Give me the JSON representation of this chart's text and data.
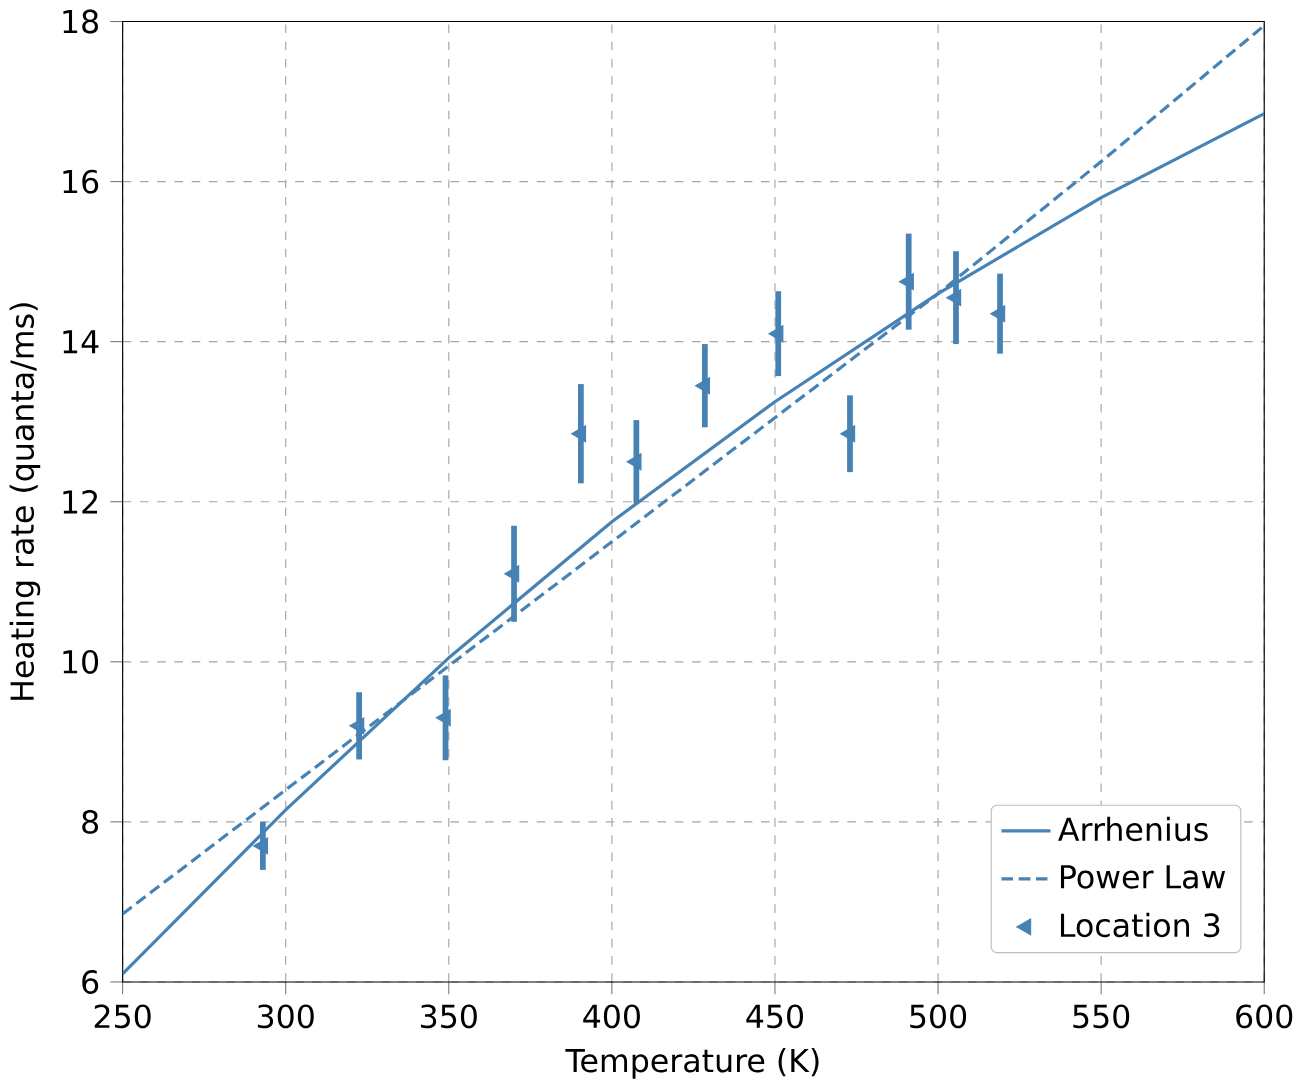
{
  "chart_data": {
    "type": "line",
    "xlabel": "Temperature (K)",
    "ylabel": "Heating rate (quanta/ms)",
    "xlim": [
      250,
      600
    ],
    "ylim": [
      6,
      18
    ],
    "xticks": [
      250,
      300,
      350,
      400,
      450,
      500,
      550,
      600
    ],
    "yticks": [
      6,
      8,
      10,
      12,
      14,
      16,
      18
    ],
    "grid": true,
    "legend": "bottom right",
    "series": [
      {
        "name": "Arrhenius",
        "line_style": "solid",
        "color": "#4682b4",
        "x": [
          250,
          300,
          350,
          400,
          450,
          500,
          550,
          600
        ],
        "values": [
          6.1,
          8.15,
          10.05,
          11.75,
          13.25,
          14.6,
          15.8,
          16.85
        ]
      },
      {
        "name": "Power Law",
        "line_style": "dashed",
        "color": "#4682b4",
        "x": [
          250,
          300,
          350,
          400,
          450,
          500,
          550,
          600
        ],
        "values": [
          6.85,
          8.4,
          9.95,
          11.5,
          13.05,
          14.6,
          16.25,
          17.95
        ]
      },
      {
        "name": "Location 3",
        "type": "scatter",
        "marker": "triangle",
        "color": "#4682b4",
        "x": [
          293,
          322.5,
          349,
          370,
          390.5,
          407.5,
          428.5,
          451,
          473,
          491,
          505.5,
          519
        ],
        "values": [
          7.7,
          9.2,
          9.3,
          11.1,
          12.85,
          12.5,
          13.45,
          14.1,
          12.85,
          14.75,
          14.55,
          14.35
        ],
        "errors": [
          0.3,
          0.42,
          0.53,
          0.6,
          0.62,
          0.52,
          0.52,
          0.53,
          0.48,
          0.6,
          0.58,
          0.5
        ]
      }
    ]
  }
}
